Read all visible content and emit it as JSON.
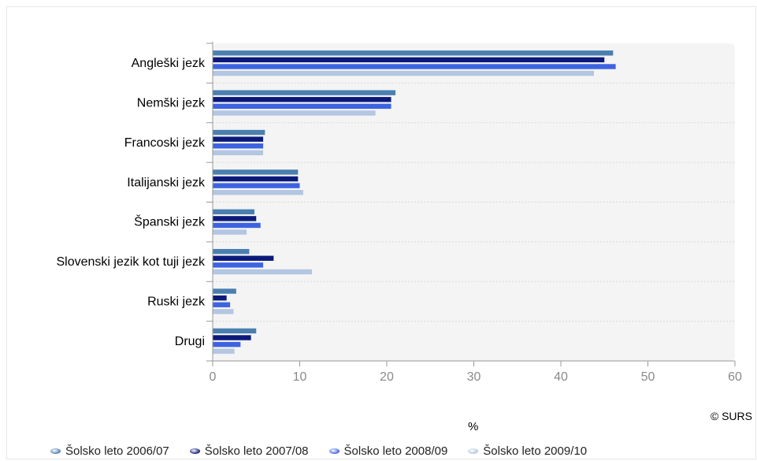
{
  "chart_data": {
    "type": "bar",
    "orientation": "horizontal",
    "categories": [
      "Angleški jezk",
      "Nemški jezk",
      "Francoski jezk",
      "Italijanski jezk",
      "Španski jezk",
      "Slovenski jezik kot tuji jezk",
      "Ruski jezk",
      "Drugi"
    ],
    "series": [
      {
        "name": "Šolsko leto 2006/07",
        "color": "#4a7fb0",
        "values": [
          46.0,
          21.0,
          6.0,
          9.8,
          4.8,
          4.2,
          2.7,
          5.0
        ]
      },
      {
        "name": "Šolsko leto 2007/08",
        "color": "#0b1a7a",
        "values": [
          45.0,
          20.5,
          5.8,
          9.8,
          5.0,
          7.0,
          1.6,
          4.4
        ]
      },
      {
        "name": "Šolsko leto 2008/09",
        "color": "#3d63e0",
        "values": [
          46.3,
          20.5,
          5.8,
          10.0,
          5.5,
          5.8,
          2.0,
          3.2
        ]
      },
      {
        "name": "Šolsko leto 2009/10",
        "color": "#b3c6e2",
        "values": [
          43.8,
          18.7,
          5.8,
          10.4,
          3.9,
          11.4,
          2.4,
          2.5
        ]
      }
    ],
    "xlim": [
      0,
      60
    ],
    "ticks": [
      "0",
      "10",
      "20",
      "30",
      "40",
      "50",
      "60"
    ],
    "xlabel": "%",
    "grid": true,
    "legend_position": "bottom"
  },
  "credit": "© SURS",
  "legend": [
    {
      "label": "Šolsko leto 2006/07",
      "color": "#4a7fb0"
    },
    {
      "label": "Šolsko leto 2007/08",
      "color": "#0b1a7a"
    },
    {
      "label": "Šolsko leto 2008/09",
      "color": "#3d63e0"
    },
    {
      "label": "Šolsko leto 2009/10",
      "color": "#b3c6e2"
    }
  ]
}
